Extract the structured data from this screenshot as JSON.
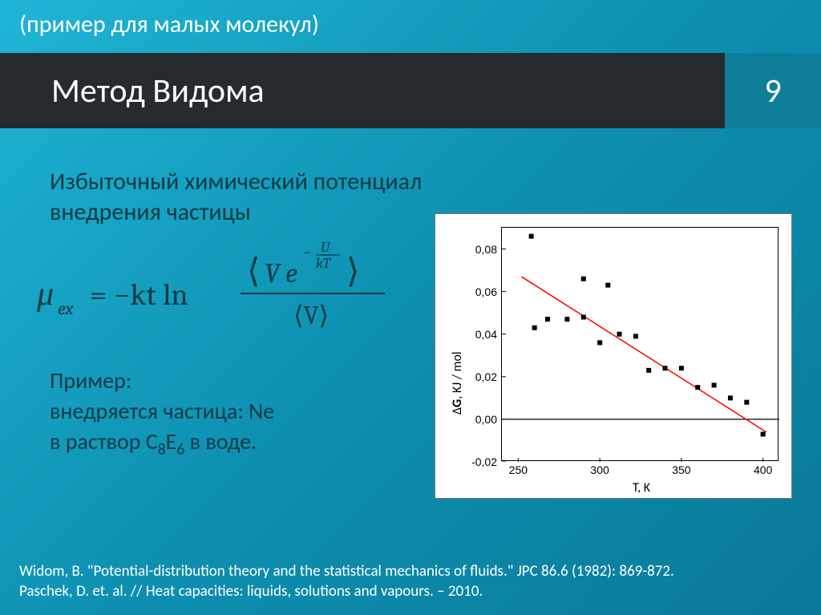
{
  "subtitle": "(пример для малых молекул)",
  "title": "Метод Видома",
  "slide_number": "9",
  "lead_text": "Избыточный химический потенциал внедрения частицы",
  "formula": {
    "mu_sym": "μ",
    "mu_sub": "ex",
    "eq": "= −kt ln",
    "num_left": "⟨",
    "num_V": "V",
    "num_e": "e",
    "exp_minus": "−",
    "exp_U": "U",
    "exp_kT": "kT",
    "num_right": "⟩",
    "den": "⟨V⟩"
  },
  "example": {
    "line1": "Пример:",
    "line2": "внедряется частица: Ne",
    "line3_pre": "в раствор C",
    "c_sub": "8",
    "line3_mid": "E",
    "e_sub": "6",
    "line3_post": " в воде."
  },
  "chart": {
    "type": "scatter-with-line",
    "background_color": "#ffffff",
    "plot_border_color": "#000000",
    "x_label": "T, K",
    "y_label": "ΔG, KJ / mol",
    "x_min": 240,
    "x_max": 410,
    "y_min": -0.02,
    "y_max": 0.09,
    "x_ticks": [
      250,
      300,
      350,
      400
    ],
    "y_ticks": [
      -0.02,
      0.0,
      0.02,
      0.04,
      0.06,
      0.08
    ],
    "y_tick_labels": [
      "-0,02",
      "0,00",
      "0,02",
      "0,04",
      "0,06",
      "0,08"
    ],
    "label_fontsize": 16,
    "tick_fontsize": 14,
    "marker_style": "square",
    "marker_size": 6,
    "marker_color": "#000000",
    "line_color": "#ff0000",
    "line_width": 1.5,
    "zero_line_color": "#000000",
    "zero_line_width": 1.2,
    "points": [
      {
        "x": 258,
        "y": 0.086
      },
      {
        "x": 260,
        "y": 0.043
      },
      {
        "x": 268,
        "y": 0.047
      },
      {
        "x": 280,
        "y": 0.047
      },
      {
        "x": 290,
        "y": 0.048
      },
      {
        "x": 290,
        "y": 0.066
      },
      {
        "x": 300,
        "y": 0.036
      },
      {
        "x": 305,
        "y": 0.063
      },
      {
        "x": 312,
        "y": 0.04
      },
      {
        "x": 322,
        "y": 0.039
      },
      {
        "x": 330,
        "y": 0.023
      },
      {
        "x": 340,
        "y": 0.024
      },
      {
        "x": 350,
        "y": 0.024
      },
      {
        "x": 360,
        "y": 0.015
      },
      {
        "x": 370,
        "y": 0.016
      },
      {
        "x": 380,
        "y": 0.01
      },
      {
        "x": 390,
        "y": 0.008
      },
      {
        "x": 400,
        "y": -0.007
      }
    ],
    "fit_line": {
      "x1": 252,
      "y1": 0.067,
      "x2": 402,
      "y2": -0.006
    }
  },
  "footer": {
    "line1": "Widom, B. \"Potential-distribution theory and the statistical mechanics of fluids.\" JPC 86.6 (1982): 869-872.",
    "line2": "Paschek, D. et. al. // Heat capacities: liquids, solutions and vapours. – 2010."
  },
  "colors": {
    "bg_gradient_start": "#1fb5d6",
    "bg_gradient_end": "#0a7a99",
    "title_bg": "#252b2e",
    "accent": "#0f7e9a",
    "body_text": "#073a46",
    "light_text": "#ffffff"
  }
}
